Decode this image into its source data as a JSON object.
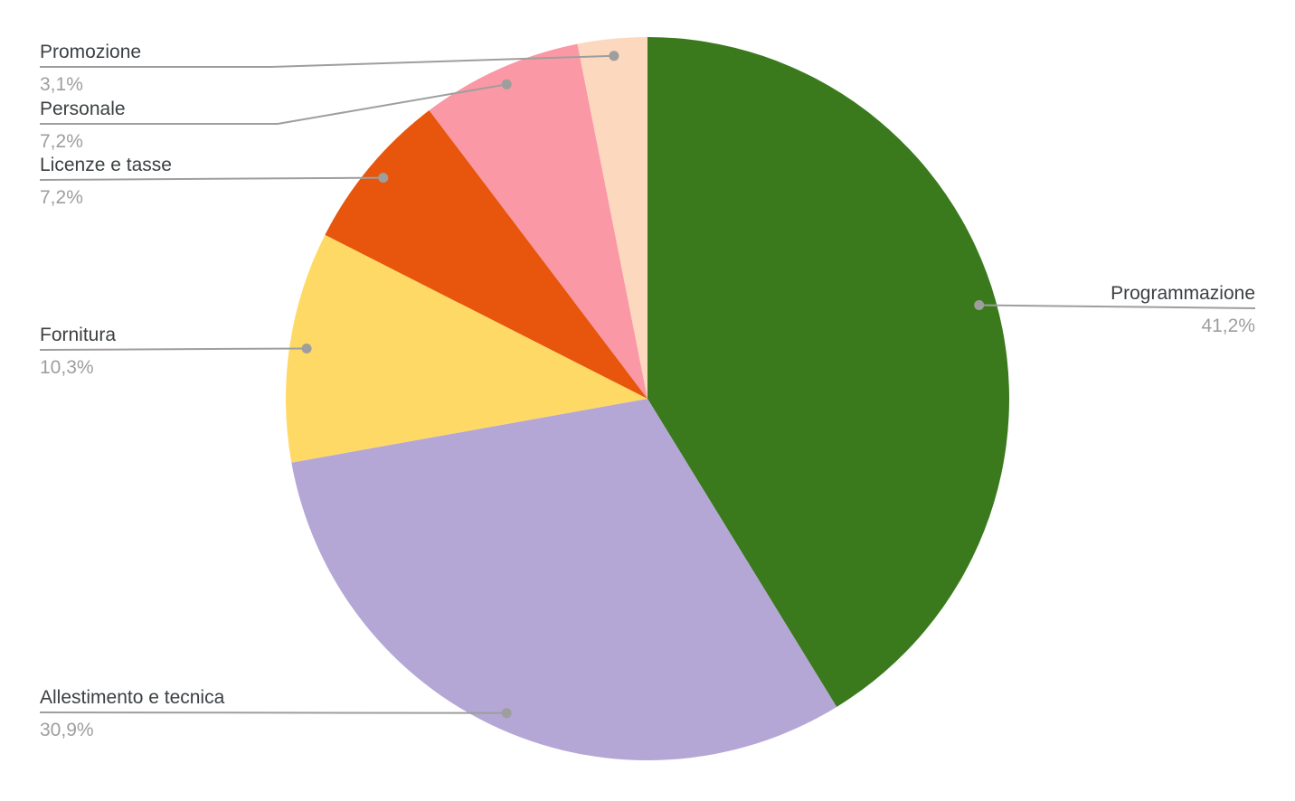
{
  "chart_data": {
    "type": "pie",
    "title": "",
    "legend_position": "labeled-callouts",
    "start_angle_deg": 0,
    "direction": "clockwise",
    "background": "#ffffff",
    "label_color": "#3c4043",
    "pct_color": "#9e9e9e",
    "leader_line_color": "#9e9e9e",
    "slices": [
      {
        "label": "Programmazione",
        "value": 41.2,
        "pct_text": "41,2%",
        "color": "#3a7a1d"
      },
      {
        "label": "Allestimento e tecnica",
        "value": 30.9,
        "pct_text": "30,9%",
        "color": "#b4a7d6"
      },
      {
        "label": "Fornitura",
        "value": 10.3,
        "pct_text": "10,3%",
        "color": "#ffd966"
      },
      {
        "label": "Licenze e tasse",
        "value": 7.2,
        "pct_text": "7,2%",
        "color": "#e8550c"
      },
      {
        "label": "Personale",
        "value": 7.2,
        "pct_text": "7,2%",
        "color": "#fa98a6"
      },
      {
        "label": "Promozione",
        "value": 3.1,
        "pct_text": "3,1%",
        "color": "#fcd8be"
      }
    ]
  }
}
